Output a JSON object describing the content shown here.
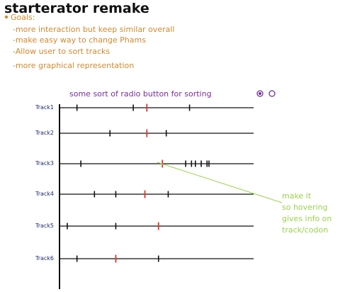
{
  "title": "starterator remake",
  "goals": {
    "label": "Goals:",
    "items": [
      "-more interaction but keep similar overall",
      "-make easy way to change Phams",
      "-Allow user to sort tracks",
      "-more graphical representation"
    ]
  },
  "sorting": {
    "label": "some sort of radio button for sorting",
    "selected_index": 0
  },
  "annotation": {
    "lines": [
      "make it",
      "so hovering",
      "gives info on",
      "track/codon"
    ]
  },
  "colors": {
    "title": "#111111",
    "goals": "#d08a2e",
    "sorting": "#7a2d9a",
    "track_label": "#1f2a6b",
    "track_line": "#111111",
    "tick": "#111111",
    "highlight_tick": "#d83a2a",
    "annotation": "#9ad24a"
  },
  "tracks": [
    {
      "label": "Track1",
      "ticks": [
        0.09,
        0.38,
        0.67
      ],
      "highlight": 0.45
    },
    {
      "label": "Track2",
      "ticks": [
        0.26,
        0.55
      ],
      "highlight": 0.45
    },
    {
      "label": "Track3",
      "ticks": [
        0.11,
        0.65,
        0.68,
        0.7,
        0.73,
        0.76,
        0.77
      ],
      "highlight": 0.53
    },
    {
      "label": "Track4",
      "ticks": [
        0.18,
        0.29,
        0.56
      ],
      "highlight": 0.44
    },
    {
      "label": "Track5",
      "ticks": [
        0.04,
        0.29
      ],
      "highlight": 0.51
    },
    {
      "label": "Track6",
      "ticks": [
        0.09,
        0.51
      ],
      "highlight": 0.29
    }
  ]
}
